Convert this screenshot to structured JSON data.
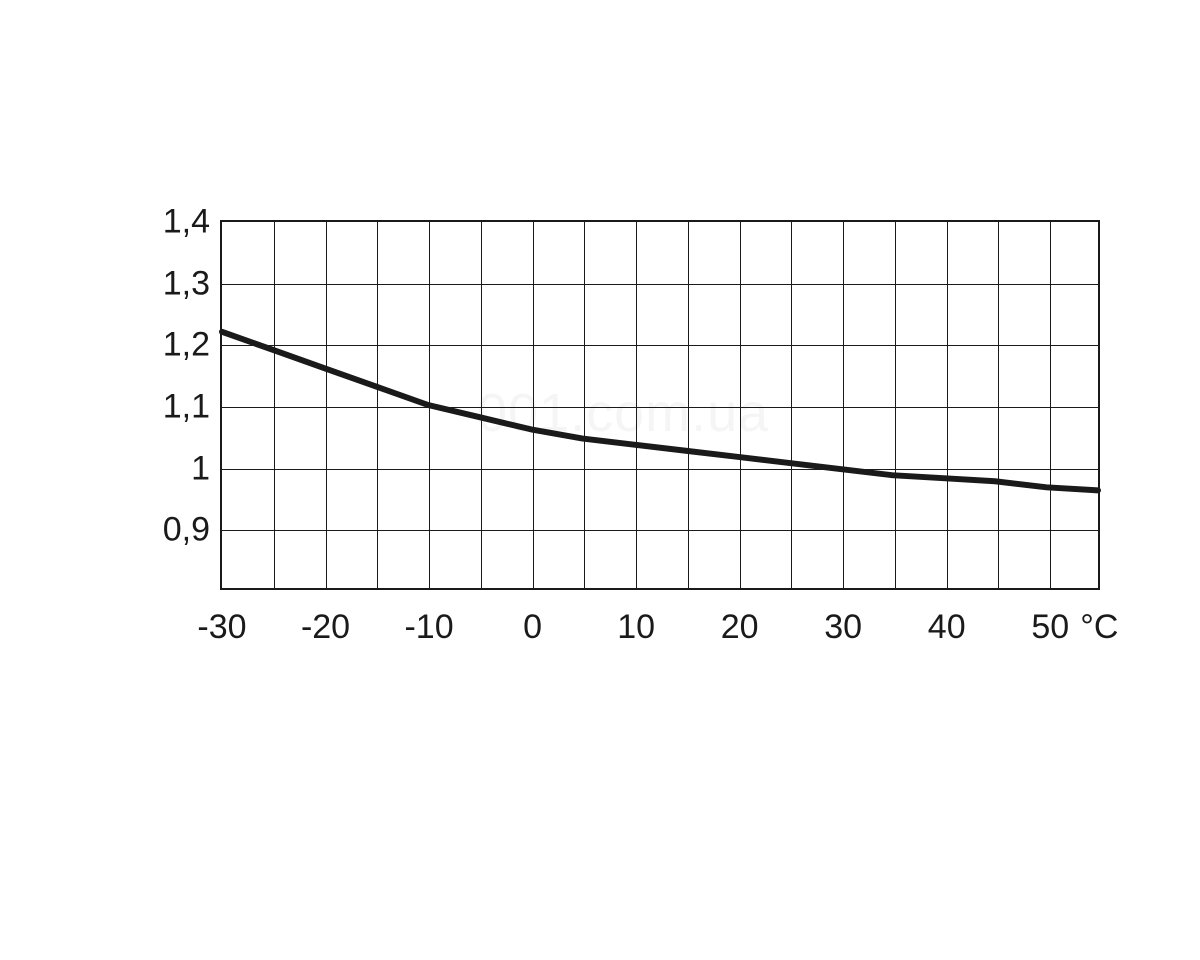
{
  "chart": {
    "type": "line",
    "background_color": "#ffffff",
    "grid_color": "#1a1a1a",
    "border_color": "#1a1a1a",
    "text_color": "#1a1a1a",
    "line_color": "#1a1a1a",
    "line_width": 6,
    "label_fontsize": 34,
    "x_axis": {
      "min": -30,
      "max": 55,
      "tick_step": 10,
      "minor_tick_step": 5,
      "ticks": [
        -30,
        -20,
        -10,
        0,
        10,
        20,
        30,
        40,
        50
      ],
      "tick_labels": [
        "-30",
        "-20",
        "-10",
        "0",
        "10",
        "20",
        "30",
        "40",
        "50"
      ],
      "unit": "°C"
    },
    "y_axis": {
      "min": 0.8,
      "max": 1.4,
      "tick_step": 0.1,
      "ticks": [
        0.9,
        1.0,
        1.1,
        1.2,
        1.3,
        1.4
      ],
      "tick_labels": [
        "0,9",
        "1",
        "1,1",
        "1,2",
        "1,3",
        "1,4"
      ]
    },
    "data_points": [
      {
        "x": -30,
        "y": 1.22
      },
      {
        "x": -25,
        "y": 1.19
      },
      {
        "x": -20,
        "y": 1.16
      },
      {
        "x": -15,
        "y": 1.13
      },
      {
        "x": -10,
        "y": 1.1
      },
      {
        "x": -5,
        "y": 1.08
      },
      {
        "x": 0,
        "y": 1.06
      },
      {
        "x": 5,
        "y": 1.045
      },
      {
        "x": 10,
        "y": 1.035
      },
      {
        "x": 15,
        "y": 1.025
      },
      {
        "x": 20,
        "y": 1.015
      },
      {
        "x": 25,
        "y": 1.005
      },
      {
        "x": 30,
        "y": 0.995
      },
      {
        "x": 35,
        "y": 0.985
      },
      {
        "x": 40,
        "y": 0.98
      },
      {
        "x": 45,
        "y": 0.975
      },
      {
        "x": 50,
        "y": 0.965
      },
      {
        "x": 55,
        "y": 0.96
      }
    ],
    "watermark": "001.com.ua"
  }
}
